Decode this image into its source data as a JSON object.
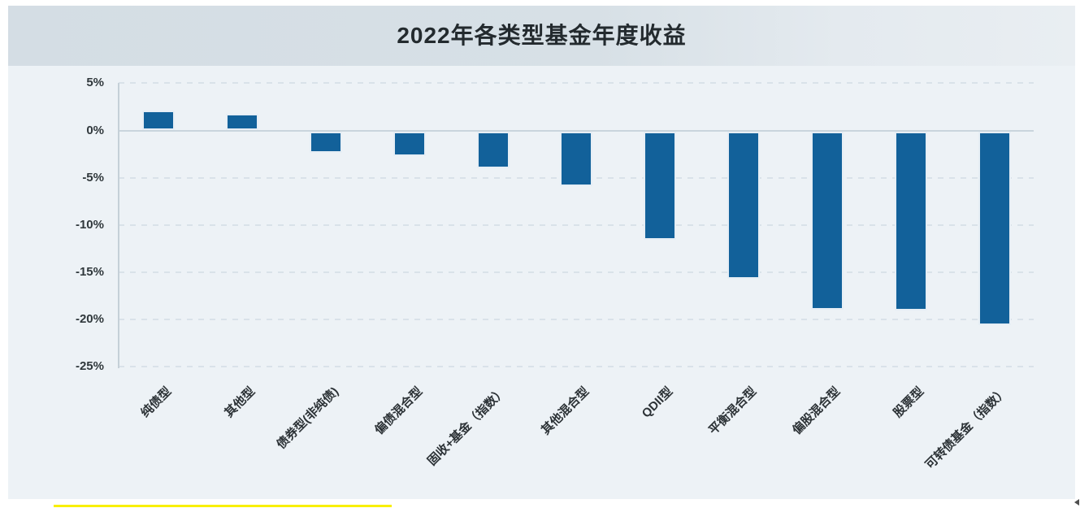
{
  "header": {
    "title": "2022年各类型基金年度收益"
  },
  "chart_data": {
    "type": "bar",
    "title": "2022年各类型基金年度收益",
    "categories": [
      "纯债型",
      "其他型",
      "债券型(非纯债)",
      "偏债混合型",
      "固收+基金（指数）",
      "其他混合型",
      "QDII型",
      "平衡混合型",
      "偏股混合型",
      "股票型",
      "可转债基金（指数）"
    ],
    "values": [
      2.1,
      1.8,
      -2.3,
      -2.6,
      -3.9,
      -5.8,
      -11.5,
      -15.6,
      -18.9,
      -19.0,
      -20.5
    ],
    "unit": "%",
    "xlabel": "",
    "ylabel": "",
    "ylim": [
      -25,
      5
    ],
    "ytick_labels": [
      "5%",
      "0%",
      "-5%",
      "-10%",
      "-15%",
      "-20%",
      "-25%"
    ],
    "ytick_values": [
      5,
      0,
      -5,
      -10,
      -15,
      -20,
      -25
    ],
    "grid": "horizontal-dashed",
    "legend_position": "none",
    "bar_color": "#12619a",
    "plot_background": "#edf2f6"
  },
  "decorations": {
    "yellow_strip_color": "#f8ef00",
    "corner_mark_color": "#4f4f4f"
  }
}
